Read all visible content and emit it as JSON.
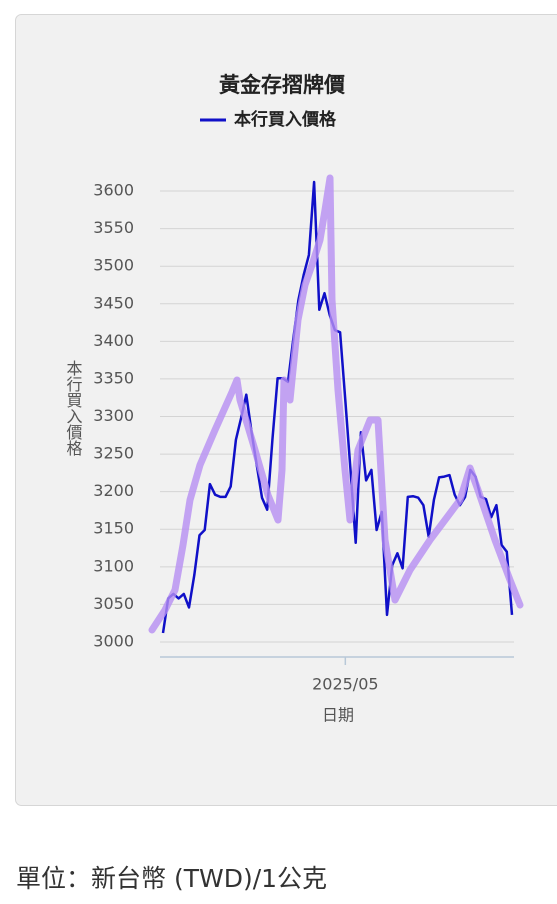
{
  "chart_data": {
    "type": "line",
    "title": "黃金存摺牌價",
    "x_label": "日期",
    "y_label": "本行買入價格",
    "categories": [
      null,
      null,
      null,
      null,
      null,
      null,
      null,
      null,
      null,
      null,
      null,
      null,
      null,
      null,
      null,
      null,
      null,
      null,
      null,
      null,
      null,
      null,
      null,
      null,
      null,
      null,
      null,
      null,
      null,
      null,
      null,
      null,
      null,
      null,
      null,
      "2025/05",
      null,
      null,
      null,
      null,
      null,
      null,
      null,
      null,
      null,
      null,
      null,
      null,
      null,
      null,
      null,
      null,
      null,
      null,
      null,
      null,
      null,
      null,
      null,
      null,
      null,
      null,
      null,
      null,
      null,
      null,
      null,
      null
    ],
    "series": [
      {
        "name": "本行買入價格",
        "color": "#1010c8",
        "values": [
          3012,
          3058,
          3064,
          3058,
          3064,
          3046,
          3089,
          3142,
          3149,
          3210,
          3196,
          3193,
          3193,
          3207,
          3269,
          3298,
          3329,
          3279,
          3235,
          3192,
          3176,
          3269,
          3351,
          3351,
          3346,
          3402,
          3455,
          3488,
          3515,
          3612,
          3442,
          3464,
          3435,
          3415,
          3412,
          3322,
          3229,
          3132,
          3279,
          3215,
          3229,
          3149,
          3173,
          3036,
          3102,
          3118,
          3098,
          3193,
          3194,
          3192,
          3182,
          3140,
          3189,
          3219,
          3220,
          3222,
          3196,
          3182,
          3193,
          3229,
          3220,
          3193,
          3190,
          3166,
          3182,
          3129,
          3120,
          3036
        ]
      }
    ],
    "ylim": [
      2980,
      3620
    ],
    "yticks": [
      3000,
      3050,
      3100,
      3150,
      3200,
      3250,
      3300,
      3350,
      3400,
      3450,
      3500,
      3550,
      3600
    ],
    "grid": true
  },
  "footer": "單位：新台幣 (TWD)/1公克"
}
